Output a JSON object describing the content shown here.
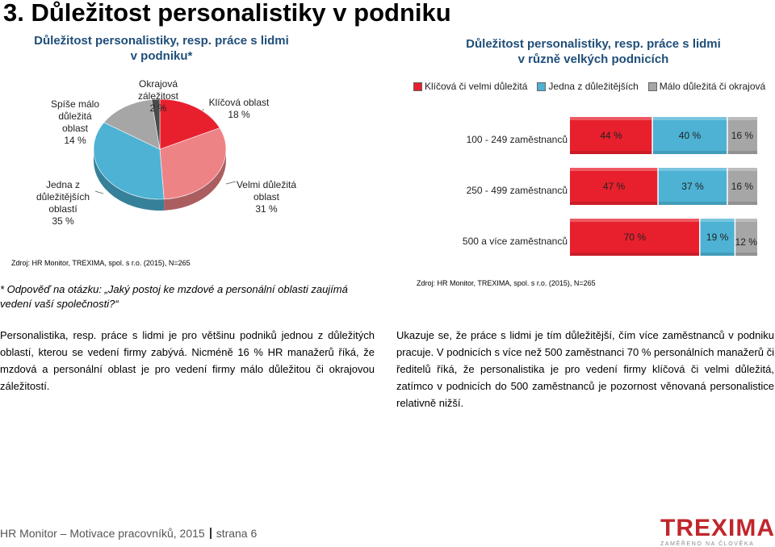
{
  "page_title": "3. Důležitost personalistiky v podniku",
  "left_chart": {
    "title_line1": "Důležitost personalistiky, resp. práce s lidmi",
    "title_line2": "v podniku*",
    "labels": {
      "okrajova": [
        "Okrajová",
        "záležitost",
        "2 %"
      ],
      "klicova": [
        "Klíčová oblast",
        "18 %"
      ],
      "spise": [
        "Spíše málo",
        "důležitá",
        "oblast",
        "14 %"
      ],
      "jedna": [
        "Jedna z",
        "důležitějších",
        "oblastí",
        "35 %"
      ],
      "velmi": [
        "Velmi důležitá",
        "oblast",
        "31 %"
      ]
    },
    "source": "Zdroj: HR Monitor, TREXIMA, spol. s r.o. (2015), N=265"
  },
  "chart_data": [
    {
      "type": "pie",
      "title": "Důležitost personalistiky, resp. práce s lidmi v podniku*",
      "categories": [
        "Klíčová oblast",
        "Velmi důležitá oblast",
        "Jedna z důležitějších oblastí",
        "Spíše málo důležitá oblast",
        "Okrajová záležitost"
      ],
      "values": [
        18,
        31,
        35,
        14,
        2
      ],
      "unit": "%",
      "colors": [
        "#e8202e",
        "#ee8386",
        "#4db2d4",
        "#a6a6a6",
        "#4a4a4a"
      ]
    },
    {
      "type": "bar",
      "orientation": "horizontal",
      "stacked": true,
      "title": "Důležitost personalistiky, resp. práce s lidmi v různě velkých podnicích",
      "categories": [
        "100 - 249 zaměstnanců",
        "250 - 499 zaměstnanců",
        "500 a více zaměstnanců"
      ],
      "series": [
        {
          "name": "Klíčová či velmi důležitá",
          "values": [
            44,
            47,
            70
          ],
          "color": "#e8202e"
        },
        {
          "name": "Jedna z důležitějších",
          "values": [
            40,
            37,
            19
          ],
          "color": "#4db2d4"
        },
        {
          "name": "Málo důležitá či okrajová",
          "values": [
            16,
            16,
            12
          ],
          "color": "#a6a6a6"
        }
      ],
      "legend": "top",
      "unit": "%"
    }
  ],
  "right_chart": {
    "title_line1": "Důležitost personalistiky, resp. práce s lidmi",
    "title_line2": "v různě velkých podnicích",
    "legend": [
      "Klíčová či velmi důležitá",
      "Jedna z důležitějších",
      "Málo důležitá či okrajová"
    ],
    "rows": [
      "100 - 249 zaměstnanců",
      "250 - 499 zaměstnanců",
      "500 a více zaměstnanců"
    ],
    "bar_labels": [
      [
        "44 %",
        "40 %",
        "16 %"
      ],
      [
        "47 %",
        "37 %",
        "16 %"
      ],
      [
        "70 %",
        "19 %",
        "12 %"
      ]
    ],
    "source": "Zdroj: HR Monitor, TREXIMA, spol. s r.o. (2015), N=265"
  },
  "note": "* Odpověď na otázku: „Jaký postoj ke mzdové a personální oblasti zaujímá vedení vaší společnosti?“",
  "paragraph_left": "Personalistika, resp. práce s lidmi je pro většinu podniků jednou z důležitých oblastí, kterou se vedení firmy zabývá. Nicméně 16 % HR manažerů říká, že mzdová a personální oblast je pro vedení firmy málo důležitou či okrajovou záležitostí.",
  "paragraph_right": "Ukazuje se, že práce s lidmi je tím důležitější, čím více zaměstnanců v podniku pracuje. V podnicích s více než 500 zaměstnanci 70 % personálních manažerů či ředitelů říká, že personalistika je pro vedení firmy klíčová či velmi důležitá, zatímco v podnicích do 500 zaměstnanců je pozornost věnovaná personalistice relativně nižší.",
  "footer": {
    "left": "HR Monitor – Motivace pracovníků, 2015",
    "right": "strana 6"
  },
  "logo": {
    "word": "TREXIMA",
    "tagline": "ZAMĚŘENO NA ČLOVĚKA"
  }
}
